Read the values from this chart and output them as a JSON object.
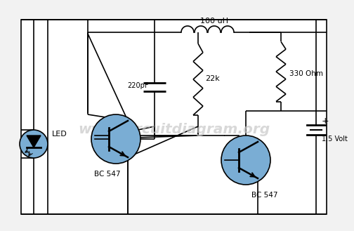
{
  "bg_color": "#f2f2f2",
  "wire_color": "#000000",
  "transistor_fill": "#7aadd4",
  "led_fill": "#7aadd4",
  "watermark": "www.circuitdiagram.org",
  "watermark_color": "#c8c8c8",
  "label_inductor": "100 uH",
  "label_330": "330 Ohm",
  "label_22k": "22k",
  "label_220pF": "220pF",
  "label_bc547_1": "BC 547",
  "label_bc547_2": "BC 547",
  "label_led": "LED",
  "label_voltage": "1.5 Volt",
  "label_plus": "+"
}
